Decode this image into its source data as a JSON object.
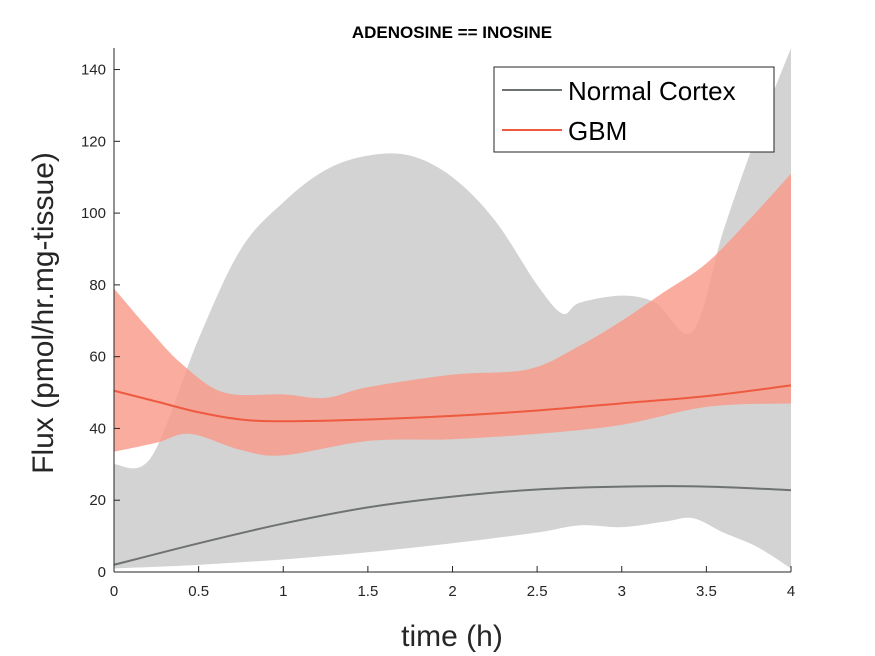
{
  "chart_data": {
    "type": "line",
    "title": "ADENOSINE == INOSINE",
    "xlabel": "time (h)",
    "ylabel": "Flux (pmol/hr.mg-tissue)",
    "xlim": [
      0,
      4
    ],
    "ylim": [
      0,
      146
    ],
    "xticks": [
      0,
      0.5,
      1,
      1.5,
      2,
      2.5,
      3,
      3.5,
      4
    ],
    "xtick_labels": [
      "0",
      "0.5",
      "1",
      "1.5",
      "2",
      "2.5",
      "3",
      "3.5",
      "4"
    ],
    "yticks": [
      0,
      20,
      40,
      60,
      80,
      100,
      120,
      140
    ],
    "ytick_labels": [
      "0",
      "20",
      "40",
      "60",
      "80",
      "100",
      "120",
      "140"
    ],
    "grid": false,
    "legend_position": "top-right",
    "series": [
      {
        "name": "Normal Cortex",
        "color": "#6e7370",
        "band_color": "#d3d3d3",
        "x": [
          0,
          0.5,
          1,
          1.5,
          2,
          2.5,
          3,
          3.5,
          4
        ],
        "y": [
          2,
          8,
          13.5,
          18,
          21,
          23,
          23.8,
          23.8,
          22.8
        ],
        "band_upper": {
          "x": [
            0,
            0.22,
            0.5,
            0.75,
            1,
            1.25,
            1.5,
            1.75,
            2,
            2.25,
            2.5,
            2.65,
            2.75,
            3,
            3.2,
            3.42,
            3.6,
            3.8,
            4
          ],
          "y": [
            30,
            32,
            65,
            90,
            103,
            112,
            116,
            116,
            110,
            98,
            80,
            72,
            75,
            77,
            75,
            67,
            95,
            122,
            146
          ]
        },
        "band_lower": {
          "x": [
            0,
            0.5,
            1,
            1.5,
            2,
            2.5,
            2.75,
            3,
            3.25,
            3.42,
            3.6,
            3.8,
            4
          ],
          "y": [
            1,
            2,
            3.5,
            5.5,
            8,
            11,
            13,
            12.5,
            14,
            15,
            11,
            7,
            1
          ]
        }
      },
      {
        "name": "GBM",
        "color": "#ee5a3f",
        "band_color": "#f99a89",
        "band_opacity": 0.82,
        "x": [
          0,
          0.25,
          0.5,
          0.75,
          1,
          1.5,
          2,
          2.5,
          3,
          3.5,
          4
        ],
        "y": [
          50.5,
          47.5,
          44.5,
          42.5,
          42,
          42.5,
          43.5,
          45,
          47,
          49,
          52
        ],
        "band_upper": {
          "x": [
            0,
            0.2,
            0.4,
            0.65,
            1,
            1.25,
            1.5,
            2,
            2.45,
            2.75,
            3,
            3.25,
            3.5,
            3.75,
            4
          ],
          "y": [
            79,
            68,
            58,
            50,
            49.5,
            48.5,
            51.5,
            55,
            56.5,
            63,
            70,
            78,
            86,
            98,
            111
          ]
        },
        "band_lower": {
          "x": [
            0,
            0.25,
            0.45,
            0.75,
            1,
            1.5,
            2,
            2.5,
            3,
            3.5,
            4
          ],
          "y": [
            33.5,
            36,
            38.5,
            34,
            32.5,
            36.5,
            37,
            38.5,
            41,
            46,
            47
          ]
        }
      }
    ]
  }
}
